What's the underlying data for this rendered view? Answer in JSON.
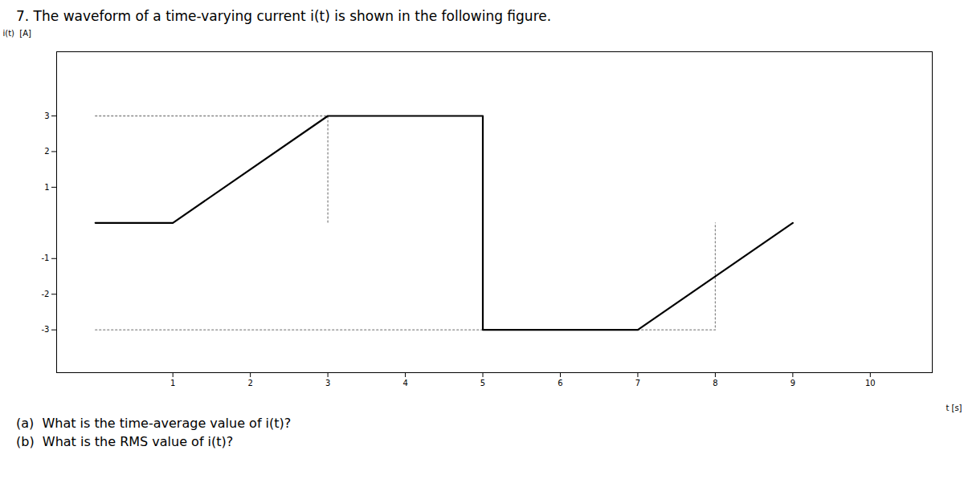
{
  "chart_data": {
    "type": "line",
    "title": "7.  The waveform of a time-varying current i(t) is shown in the following figure.",
    "xlabel": "t [s]",
    "ylabel": "i(t)  [A]",
    "x": [
      0,
      1,
      3,
      5,
      5,
      7,
      9
    ],
    "values": [
      0,
      0,
      3,
      3,
      -3,
      -3,
      0
    ],
    "color": "#000000",
    "xlim": [
      -0.5,
      10.8
    ],
    "ylim": [
      -4.2,
      4.8
    ],
    "xticks": [
      1,
      2,
      3,
      4,
      5,
      6,
      7,
      8,
      9,
      10
    ],
    "yticks": [
      -3,
      -2,
      -1,
      1,
      2,
      3
    ],
    "grid": false,
    "reference_lines": [
      {
        "x": [
          0,
          3,
          3
        ],
        "values": [
          3,
          3,
          0
        ],
        "color": "#888888",
        "line_style": "dotted"
      },
      {
        "x": [
          0,
          8,
          8
        ],
        "values": [
          -3,
          -3,
          0
        ],
        "color": "#888888",
        "line_style": "dotted"
      }
    ],
    "annotations": [
      "(a)  What is the time-average value of i(t)?",
      "(b)  What is the RMS value of i(t)?"
    ]
  }
}
